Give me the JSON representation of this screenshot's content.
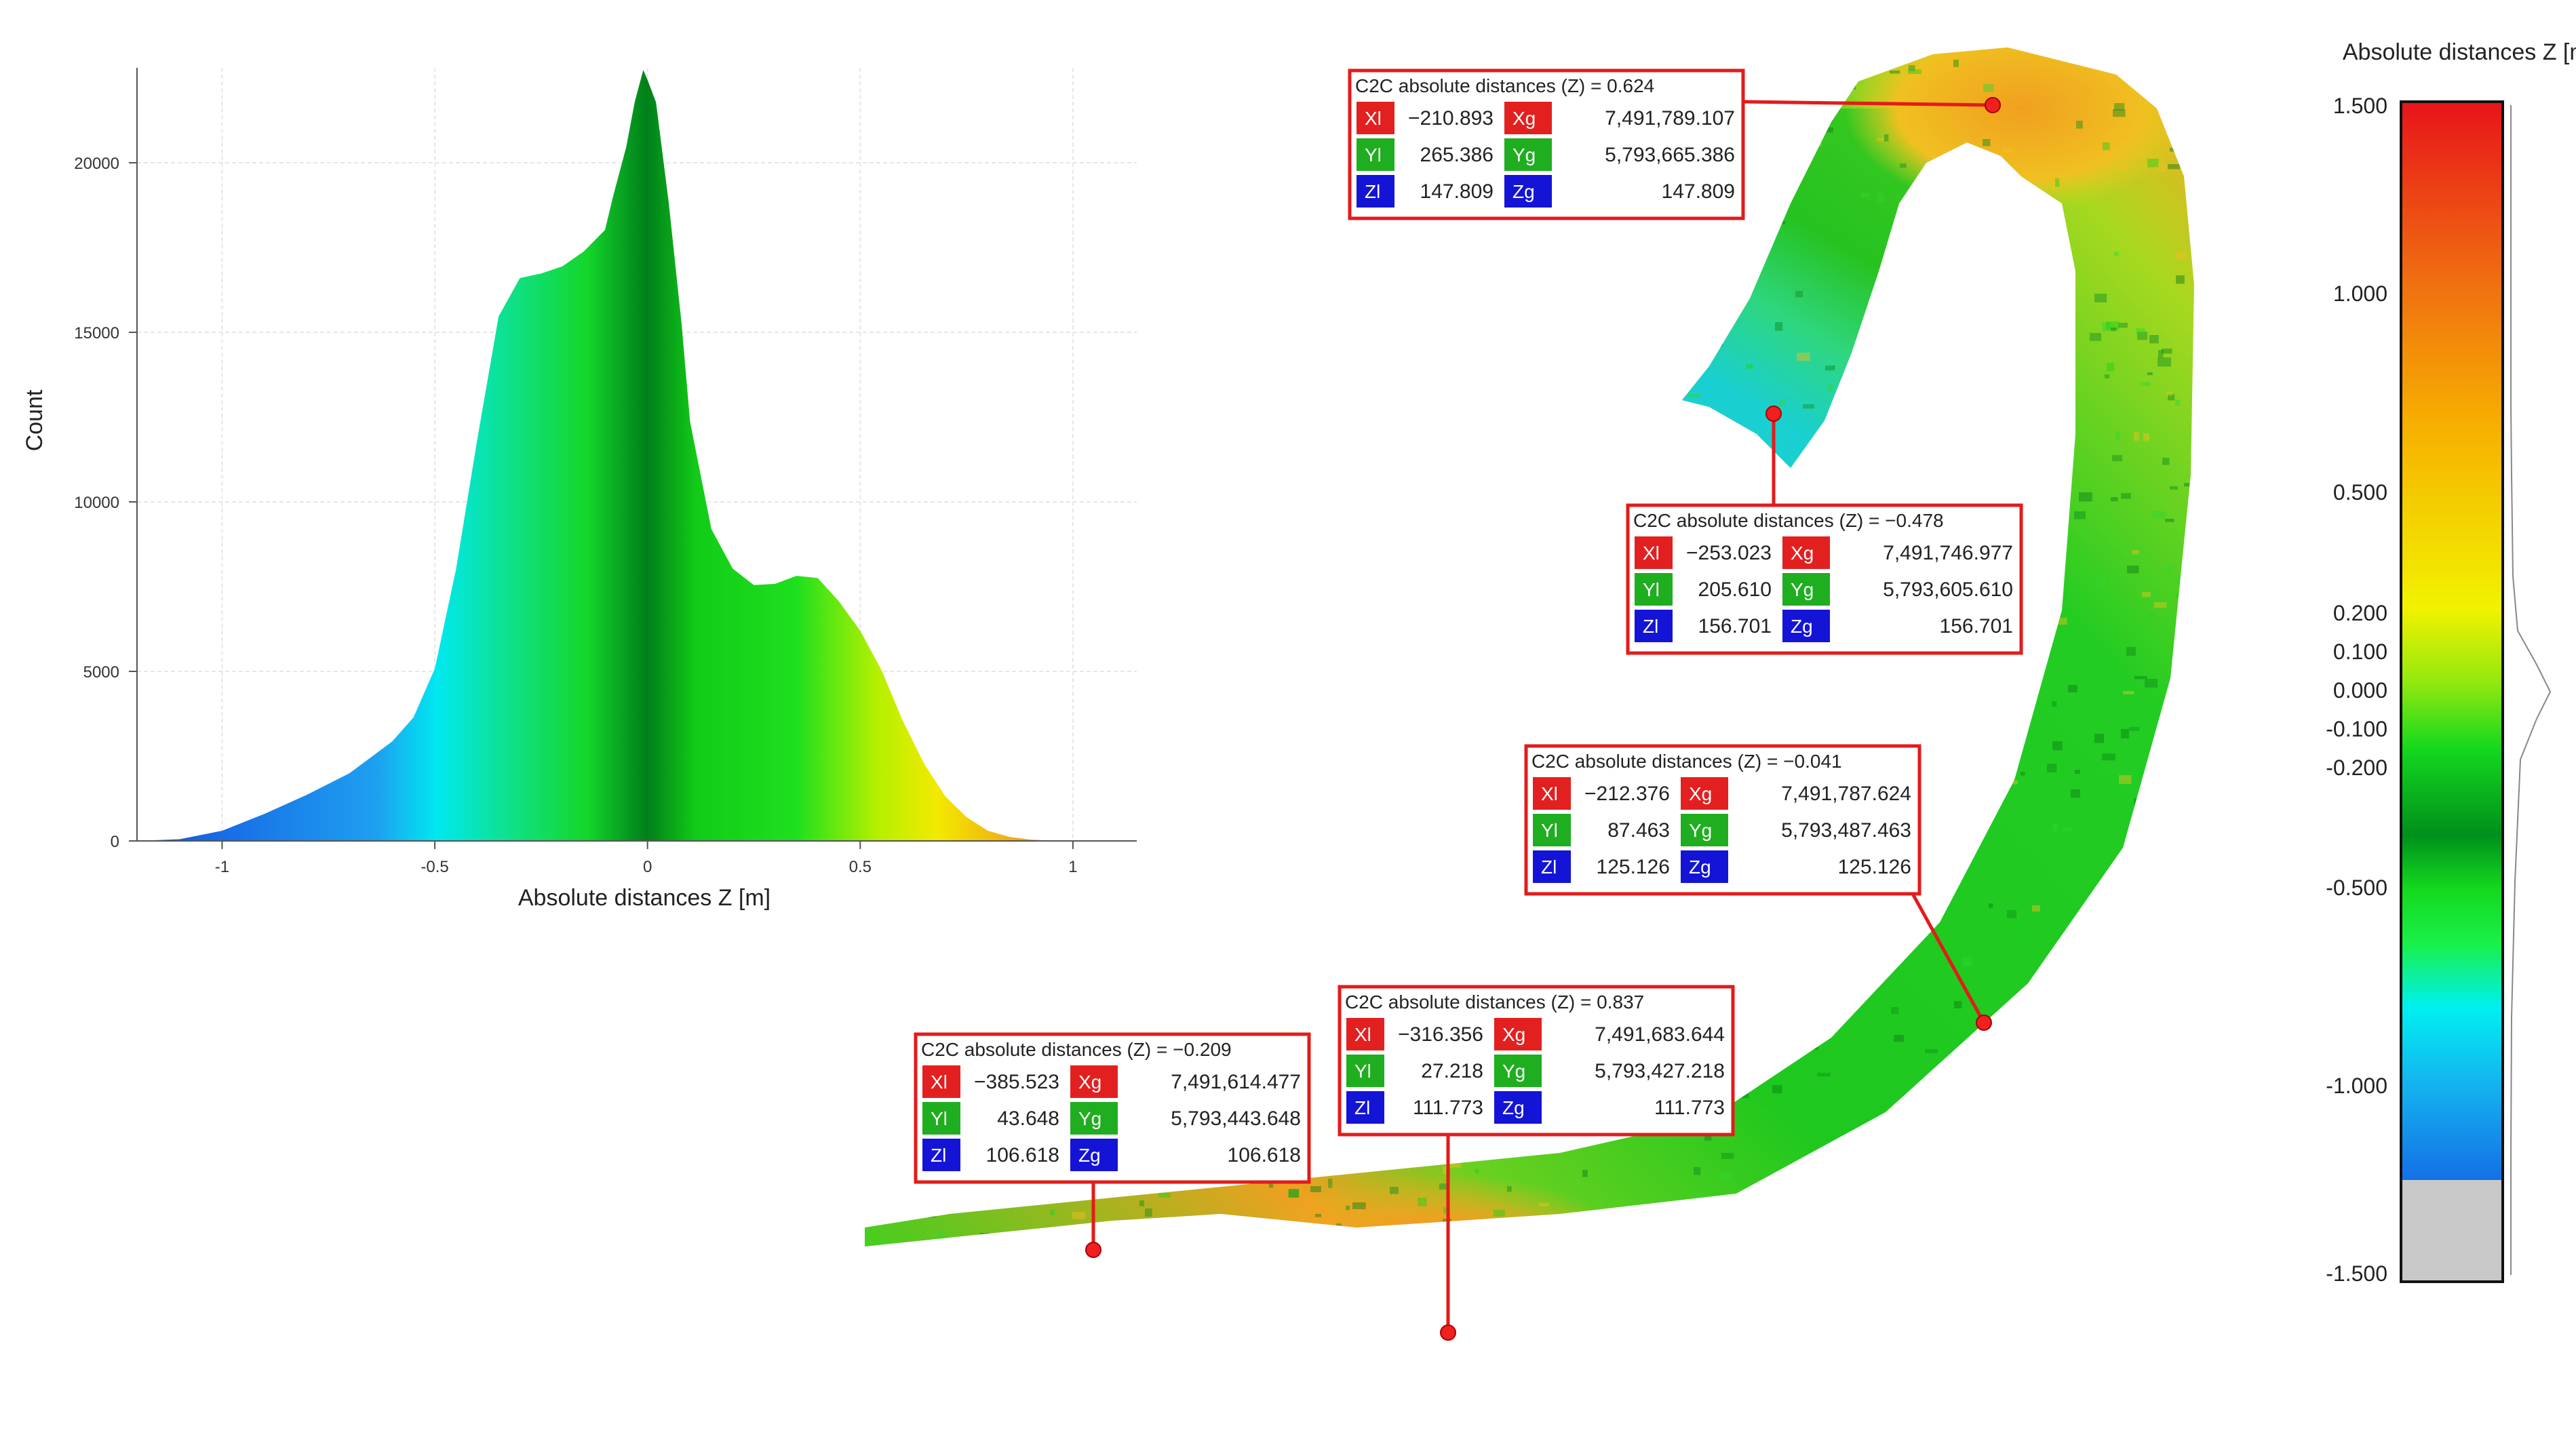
{
  "chart_data": [
    {
      "type": "histogram",
      "title": "",
      "xlabel": "Absolute distances Z [m]",
      "ylabel": "Count",
      "xlim": [
        -1.2,
        1.15
      ],
      "ylim": [
        0,
        22800
      ],
      "xticks": [
        -1,
        -0.5,
        0,
        0.5,
        1
      ],
      "xtick_labels": [
        "-1",
        "-0.5",
        "0",
        "0.5",
        "1"
      ],
      "yticks": [
        0,
        5000,
        10000,
        15000,
        20000
      ],
      "ytick_labels": [
        "0",
        "5000",
        "10000",
        "15000",
        "20000"
      ],
      "grid": true,
      "profile": {
        "x": [
          -1.2,
          -1.1,
          -1.0,
          -0.9,
          -0.8,
          -0.7,
          -0.6,
          -0.55,
          -0.5,
          -0.45,
          -0.4,
          -0.35,
          -0.3,
          -0.25,
          -0.2,
          -0.15,
          -0.1,
          -0.08,
          -0.05,
          -0.03,
          -0.01,
          0.0,
          0.02,
          0.05,
          0.08,
          0.1,
          0.15,
          0.2,
          0.25,
          0.3,
          0.35,
          0.4,
          0.45,
          0.5,
          0.55,
          0.6,
          0.65,
          0.7,
          0.75,
          0.8,
          0.85,
          0.9,
          0.95,
          1.0,
          1.1
        ],
        "y": [
          0,
          50,
          300,
          800,
          1400,
          2000,
          2900,
          3700,
          5100,
          8000,
          11800,
          15500,
          16600,
          16700,
          17000,
          17400,
          18000,
          19000,
          20500,
          21800,
          22700,
          22500,
          21800,
          18800,
          15200,
          12400,
          9200,
          8000,
          7600,
          7600,
          7800,
          7700,
          7100,
          6200,
          5000,
          3600,
          2300,
          1300,
          700,
          300,
          120,
          40,
          10,
          0,
          0
        ]
      }
    },
    {
      "type": "colorbar",
      "title": "Absolute distances Z [m]",
      "ticks": [
        1.5,
        1.0,
        0.5,
        0.2,
        0.1,
        0.0,
        -0.1,
        -0.2,
        -0.5,
        -1.0,
        -1.5
      ],
      "tick_labels": [
        "1.500",
        "1.000",
        "0.500",
        "0.200",
        "0.100",
        "0.000",
        "-0.100",
        "-0.200",
        "-0.500",
        "-1.000",
        "-1.500"
      ],
      "range": [
        -1.5,
        1.5
      ],
      "colors": {
        "max": "#e8141a",
        "high": "#f6a800",
        "mid_high": "#f2f200",
        "zero": "#009a1f",
        "mid_low": "#19f019",
        "low": "#00f5f0",
        "min": "#1478e6",
        "out_of_range": "#c8c8c8"
      }
    }
  ],
  "callouts": [
    {
      "title": "C2C absolute distances (Z) = 0.624",
      "value": 0.624,
      "xl": "−210.893",
      "xg": "7,491,789.107",
      "yl": "265.386",
      "yg": "5,793,665.386",
      "zl": "147.809",
      "zg": "147.809"
    },
    {
      "title": "C2C absolute distances (Z) = −0.478",
      "value": -0.478,
      "xl": "−253.023",
      "xg": "7,491,746.977",
      "yl": "205.610",
      "yg": "5,793,605.610",
      "zl": "156.701",
      "zg": "156.701"
    },
    {
      "title": "C2C absolute distances (Z) = −0.041",
      "value": -0.041,
      "xl": "−212.376",
      "xg": "7,491,787.624",
      "yl": "87.463",
      "yg": "5,793,487.463",
      "zl": "125.126",
      "zg": "125.126"
    },
    {
      "title": "C2C absolute distances (Z) = 0.837",
      "value": 0.837,
      "xl": "−316.356",
      "xg": "7,491,683.644",
      "yl": "27.218",
      "yg": "5,793,427.218",
      "zl": "111.773",
      "zg": "111.773"
    },
    {
      "title": "C2C absolute distances (Z) = −0.209",
      "value": -0.209,
      "xl": "−385.523",
      "xg": "7,491,614.477",
      "yl": "43.648",
      "yg": "5,793,443.648",
      "zl": "106.618",
      "zg": "106.618"
    }
  ],
  "labels": {
    "xl": "Xl",
    "xg": "Xg",
    "yl": "Yl",
    "yg": "Yg",
    "zl": "Zl",
    "zg": "Zg"
  },
  "colors": {
    "callout_border": "#e31b1b",
    "label_x": "#e32020",
    "label_y": "#1fae1f",
    "label_z": "#1414d6",
    "marker": "#f02020"
  }
}
